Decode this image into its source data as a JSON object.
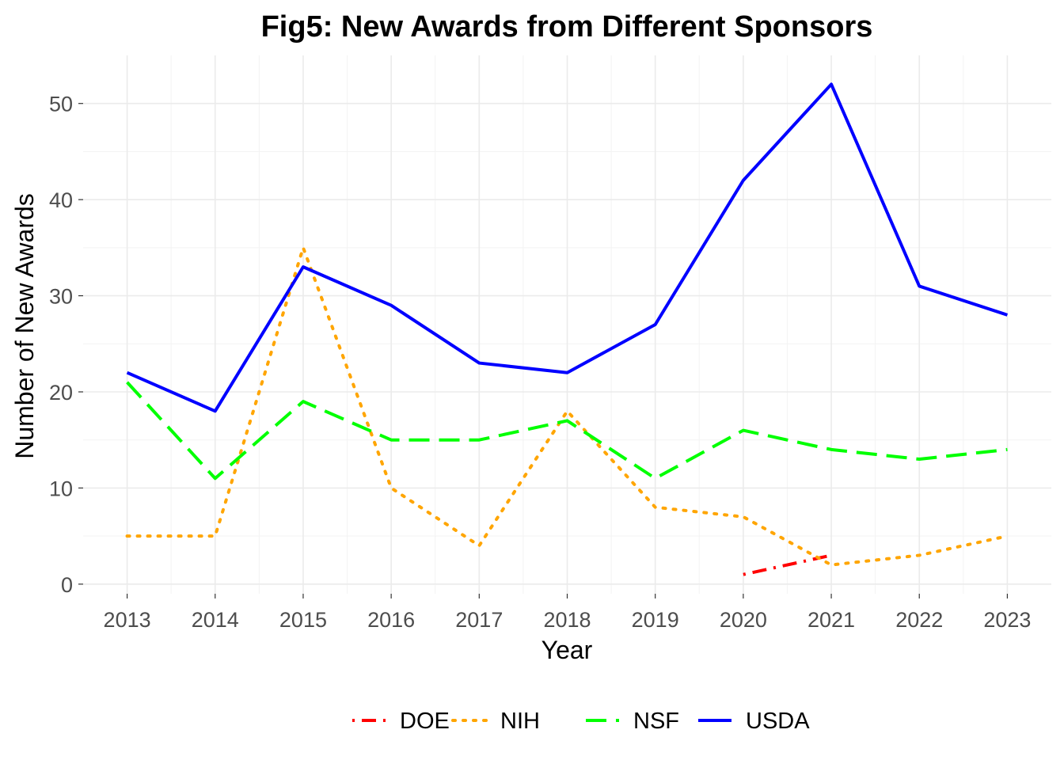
{
  "chart_data": {
    "type": "line",
    "title": "Fig5: New Awards from Different Sponsors",
    "xlabel": "Year",
    "ylabel": "Number of New Awards",
    "x": [
      2013,
      2014,
      2015,
      2016,
      2017,
      2018,
      2019,
      2020,
      2021,
      2022,
      2023
    ],
    "xlim": [
      2012.5,
      2023.5
    ],
    "ylim": [
      -1,
      55
    ],
    "y_ticks": [
      0,
      10,
      20,
      30,
      40,
      50
    ],
    "grid": true,
    "legend_position": "bottom",
    "series": [
      {
        "name": "DOE",
        "color": "#ff0000",
        "dash": "dotdash",
        "points": [
          [
            2020,
            1
          ],
          [
            2021,
            3
          ]
        ]
      },
      {
        "name": "NIH",
        "color": "#ffa500",
        "dash": "dotted",
        "points": [
          [
            2013,
            5
          ],
          [
            2014,
            5
          ],
          [
            2015,
            35
          ],
          [
            2016,
            10
          ],
          [
            2017,
            4
          ],
          [
            2018,
            18
          ],
          [
            2019,
            8
          ],
          [
            2020,
            7
          ],
          [
            2021,
            2
          ],
          [
            2022,
            3
          ],
          [
            2023,
            5
          ]
        ]
      },
      {
        "name": "NSF",
        "color": "#00ff00",
        "dash": "dashed",
        "points": [
          [
            2013,
            21
          ],
          [
            2014,
            11
          ],
          [
            2015,
            19
          ],
          [
            2016,
            15
          ],
          [
            2017,
            15
          ],
          [
            2018,
            17
          ],
          [
            2019,
            11
          ],
          [
            2020,
            16
          ],
          [
            2021,
            14
          ],
          [
            2022,
            13
          ],
          [
            2023,
            14
          ]
        ]
      },
      {
        "name": "USDA",
        "color": "#0000ff",
        "dash": "solid",
        "points": [
          [
            2013,
            22
          ],
          [
            2014,
            18
          ],
          [
            2015,
            33
          ],
          [
            2016,
            29
          ],
          [
            2017,
            23
          ],
          [
            2018,
            22
          ],
          [
            2019,
            27
          ],
          [
            2020,
            42
          ],
          [
            2021,
            52
          ],
          [
            2022,
            31
          ],
          [
            2023,
            28
          ]
        ]
      }
    ]
  }
}
